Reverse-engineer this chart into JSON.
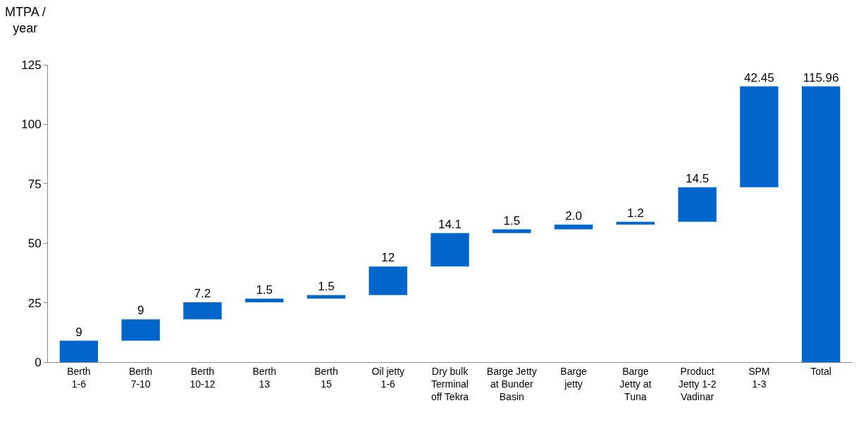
{
  "chart_data": {
    "type": "bar",
    "ylabel": "MTPA /\nyear",
    "categories": [
      "Berth\n1-6",
      "Berth\n7-10",
      "Berth\n10-12",
      "Berth\n13",
      "Berth\n15",
      "Oil jetty\n1-6",
      "Dry bulk\nTerminal\noff Tekra",
      "Barge Jetty\nat Bunder\nBasin",
      "Barge\njetty",
      "Barge\nJetty at\nTuna",
      "Product\nJetty 1-2\nVadinar",
      "SPM\n1-3",
      "Total"
    ],
    "values": [
      9,
      9,
      7.2,
      1.5,
      1.5,
      12,
      14.1,
      1.5,
      2.0,
      1.2,
      14.5,
      42.45,
      115.96
    ],
    "base": [
      0,
      9,
      18,
      25.2,
      26.7,
      28.2,
      40.2,
      54.3,
      55.8,
      57.8,
      59.0,
      73.5,
      0
    ],
    "value_labels": [
      "9",
      "9",
      "7.2",
      "1.5",
      "1.5",
      "12",
      "14.1",
      "1.5",
      "2.0",
      "1.2",
      "14.5",
      "42.45",
      "115.96"
    ],
    "color": "#0066cc",
    "ylim": [
      0,
      125
    ],
    "yticks": [
      0,
      25,
      50,
      75,
      100,
      125
    ]
  }
}
